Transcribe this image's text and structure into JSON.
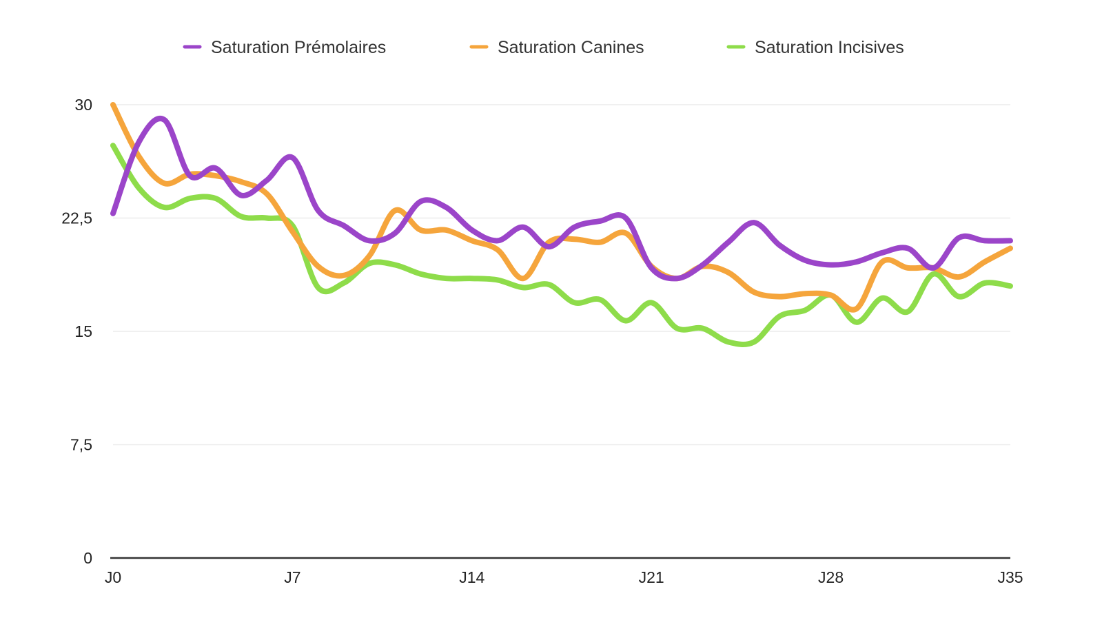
{
  "chart_data": {
    "type": "line",
    "title": "",
    "xlabel": "",
    "ylabel": "",
    "ylim": [
      0,
      30
    ],
    "yticks": [
      0,
      7.5,
      15,
      22.5,
      30
    ],
    "ytick_labels": [
      "0",
      "7,5",
      "15",
      "22,5",
      "30"
    ],
    "xlim": [
      0,
      35
    ],
    "xticks": [
      0,
      7,
      14,
      21,
      28,
      35
    ],
    "xtick_labels": [
      "J0",
      "J7",
      "J14",
      "J21",
      "J28",
      "J35"
    ],
    "grid": true,
    "legend_position": "top",
    "x": [
      0,
      1,
      2,
      3,
      4,
      5,
      6,
      7,
      8,
      9,
      10,
      11,
      12,
      13,
      14,
      15,
      16,
      17,
      18,
      19,
      20,
      21,
      22,
      23,
      24,
      25,
      26,
      27,
      28,
      29,
      30,
      31,
      32,
      33,
      34,
      35
    ],
    "series": [
      {
        "name": "Saturation Prémolaires",
        "color": "#9b45c9",
        "values": [
          22.8,
          27.5,
          29.0,
          25.3,
          25.8,
          24.0,
          25.0,
          26.5,
          23.0,
          22.0,
          21.0,
          21.5,
          23.6,
          23.2,
          21.7,
          21.0,
          21.9,
          20.6,
          21.9,
          22.3,
          22.5,
          19.2,
          18.5,
          19.4,
          20.9,
          22.2,
          20.7,
          19.7,
          19.4,
          19.6,
          20.2,
          20.5,
          19.2,
          21.2,
          21.0,
          21.0
        ]
      },
      {
        "name": "Saturation Canines",
        "color": "#f5a53c",
        "values": [
          30.0,
          26.6,
          24.8,
          25.4,
          25.3,
          24.9,
          24.1,
          21.6,
          19.3,
          18.7,
          20.0,
          23.0,
          21.7,
          21.7,
          21.0,
          20.4,
          18.5,
          20.9,
          21.1,
          20.9,
          21.5,
          19.3,
          18.5,
          19.3,
          18.9,
          17.6,
          17.3,
          17.5,
          17.4,
          16.5,
          19.6,
          19.2,
          19.2,
          18.6,
          19.6,
          20.5
        ]
      },
      {
        "name": "Saturation Incisives",
        "color": "#8edc4a",
        "values": [
          27.3,
          24.5,
          23.2,
          23.8,
          23.8,
          22.6,
          22.5,
          22.0,
          17.9,
          18.2,
          19.5,
          19.4,
          18.8,
          18.5,
          18.5,
          18.4,
          17.9,
          18.1,
          16.9,
          17.1,
          15.7,
          16.9,
          15.2,
          15.2,
          14.3,
          14.3,
          16.0,
          16.4,
          17.4,
          15.6,
          17.2,
          16.3,
          18.8,
          17.3,
          18.2,
          18.0
        ]
      }
    ]
  }
}
